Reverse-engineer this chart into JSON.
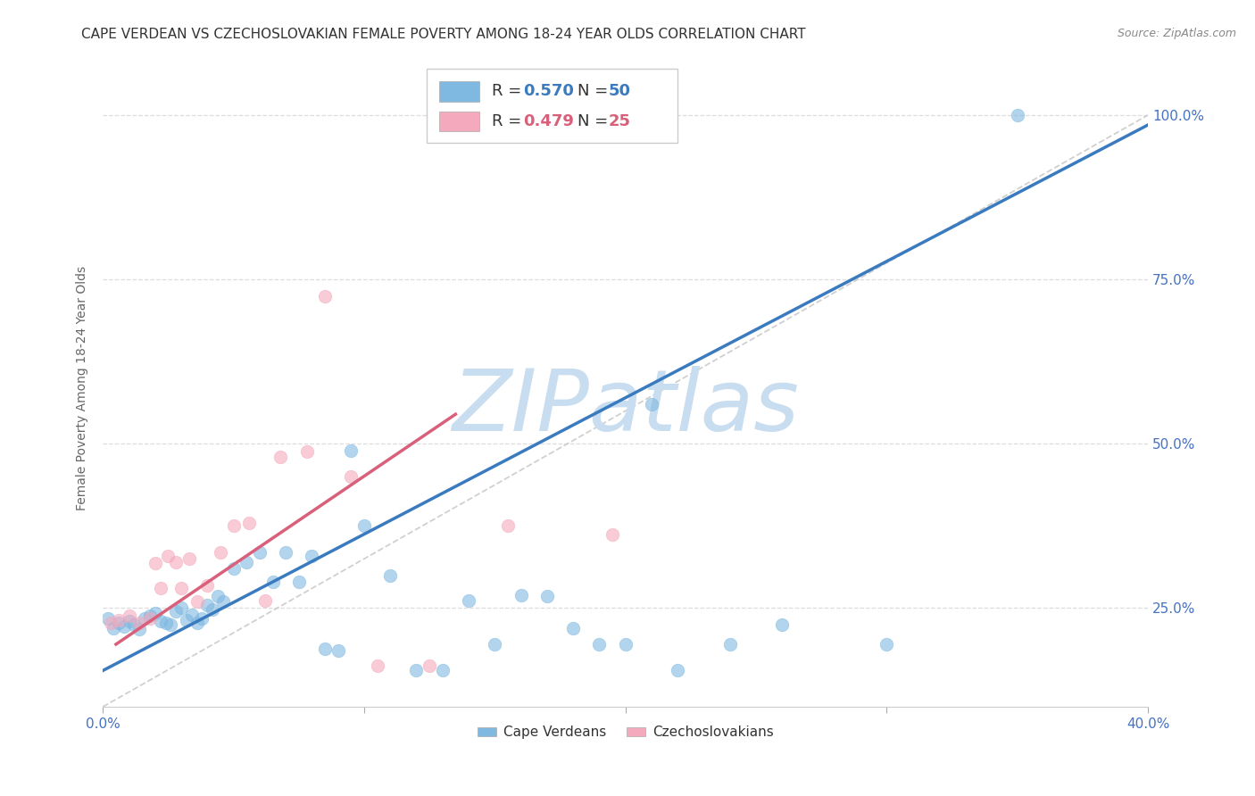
{
  "title": "CAPE VERDEAN VS CZECHOSLOVAKIAN FEMALE POVERTY AMONG 18-24 YEAR OLDS CORRELATION CHART",
  "source": "Source: ZipAtlas.com",
  "ylabel": "Female Poverty Among 18-24 Year Olds",
  "xlim": [
    0.0,
    0.4
  ],
  "ylim": [
    0.1,
    1.07
  ],
  "xticks": [
    0.0,
    0.1,
    0.2,
    0.3,
    0.4
  ],
  "xtick_labels_show": [
    "0.0%",
    "",
    "",
    "",
    "40.0%"
  ],
  "yticks_right": [
    0.25,
    0.5,
    0.75,
    1.0
  ],
  "ytick_labels_right": [
    "25.0%",
    "50.0%",
    "75.0%",
    "100.0%"
  ],
  "blue_color": "#7fb8e0",
  "pink_color": "#f4a9bd",
  "blue_line_color": "#3a7bbf",
  "pink_line_color": "#d9607a",
  "watermark": "ZIPatlas",
  "watermark_color": "#c8ddf0",
  "legend_label_blue": "Cape Verdeans",
  "legend_label_pink": "Czechoslovakians",
  "blue_scatter_x": [
    0.002,
    0.004,
    0.006,
    0.008,
    0.01,
    0.012,
    0.014,
    0.016,
    0.018,
    0.02,
    0.022,
    0.024,
    0.026,
    0.028,
    0.03,
    0.032,
    0.034,
    0.036,
    0.038,
    0.04,
    0.042,
    0.044,
    0.046,
    0.05,
    0.055,
    0.06,
    0.065,
    0.07,
    0.075,
    0.08,
    0.085,
    0.09,
    0.095,
    0.1,
    0.11,
    0.12,
    0.13,
    0.14,
    0.15,
    0.16,
    0.17,
    0.18,
    0.19,
    0.2,
    0.21,
    0.22,
    0.24,
    0.26,
    0.3,
    0.35
  ],
  "blue_scatter_y": [
    0.235,
    0.22,
    0.228,
    0.222,
    0.23,
    0.225,
    0.218,
    0.235,
    0.238,
    0.242,
    0.23,
    0.228,
    0.225,
    0.245,
    0.25,
    0.232,
    0.24,
    0.228,
    0.235,
    0.255,
    0.248,
    0.268,
    0.26,
    0.31,
    0.32,
    0.335,
    0.29,
    0.335,
    0.29,
    0.33,
    0.188,
    0.185,
    0.49,
    0.375,
    0.3,
    0.155,
    0.155,
    0.262,
    0.195,
    0.27,
    0.268,
    0.22,
    0.195,
    0.195,
    0.56,
    0.155,
    0.195,
    0.225,
    0.195,
    1.0
  ],
  "pink_scatter_x": [
    0.003,
    0.006,
    0.01,
    0.014,
    0.018,
    0.02,
    0.022,
    0.025,
    0.028,
    0.03,
    0.033,
    0.036,
    0.04,
    0.045,
    0.05,
    0.056,
    0.062,
    0.068,
    0.078,
    0.085,
    0.095,
    0.105,
    0.125,
    0.155,
    0.195
  ],
  "pink_scatter_y": [
    0.228,
    0.232,
    0.238,
    0.228,
    0.235,
    0.318,
    0.28,
    0.33,
    0.32,
    0.28,
    0.325,
    0.26,
    0.285,
    0.335,
    0.375,
    0.38,
    0.262,
    0.48,
    0.488,
    0.725,
    0.45,
    0.162,
    0.162,
    0.375,
    0.362
  ],
  "blue_line_x": [
    0.0,
    0.4
  ],
  "blue_line_y": [
    0.155,
    0.985
  ],
  "pink_line_x": [
    0.005,
    0.135
  ],
  "pink_line_y": [
    0.195,
    0.545
  ],
  "ref_line_x": [
    0.0,
    0.4
  ],
  "ref_line_y": [
    0.1,
    1.0
  ],
  "background_color": "#ffffff",
  "grid_color": "#dddddd",
  "title_fontsize": 11,
  "axis_label_fontsize": 10,
  "tick_fontsize": 11,
  "tick_color": "#4472c4",
  "source_fontsize": 9
}
